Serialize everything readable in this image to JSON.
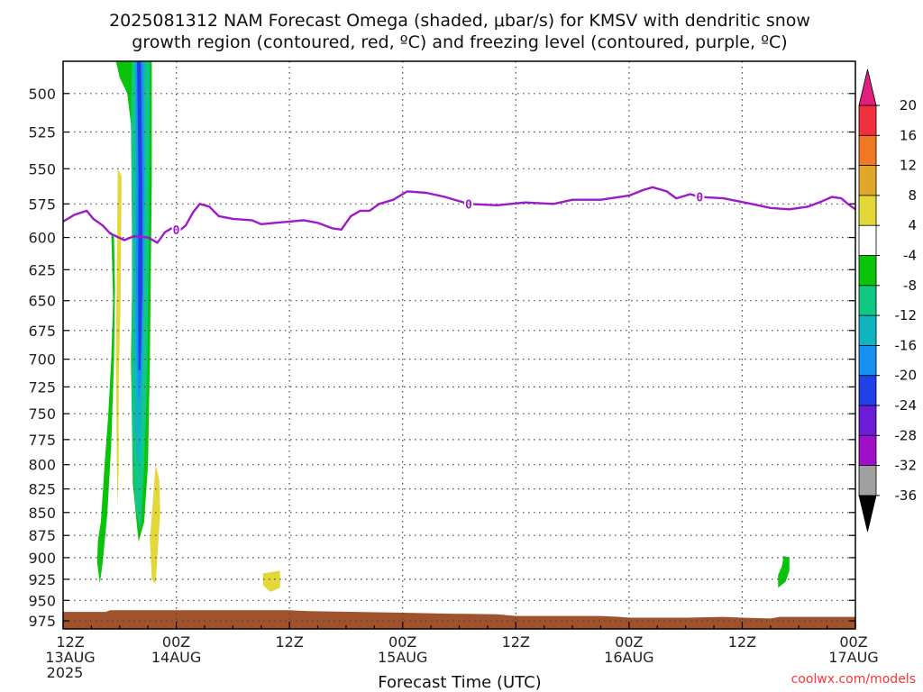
{
  "chart_data": {
    "type": "heatmap",
    "title": {
      "line1": "2025081312 NAM Forecast Omega (shaded, μbar/s) for KMSV with dendritic snow",
      "line2": "growth region (contoured, red, ºC) and freezing level (contoured, purple, ºC)"
    },
    "xlabel": "Forecast Time (UTC)",
    "x_ticks": [
      {
        "hour": 0,
        "line1": "12Z",
        "line2": "13AUG",
        "line3": "2025"
      },
      {
        "hour": 12,
        "line1": "00Z",
        "line2": "14AUG"
      },
      {
        "hour": 24,
        "line1": "12Z"
      },
      {
        "hour": 36,
        "line1": "00Z",
        "line2": "15AUG"
      },
      {
        "hour": 48,
        "line1": "12Z"
      },
      {
        "hour": 60,
        "line1": "00Z",
        "line2": "16AUG"
      },
      {
        "hour": 72,
        "line1": "12Z"
      },
      {
        "hour": 84,
        "line1": "00Z",
        "line2": "17AUG"
      }
    ],
    "xlim": [
      0,
      84
    ],
    "y_ticks": [
      500,
      525,
      550,
      575,
      600,
      625,
      650,
      675,
      700,
      725,
      750,
      775,
      800,
      825,
      850,
      875,
      900,
      925,
      950,
      975
    ],
    "ylim": [
      480,
      985
    ],
    "y_scale": "log-pressure (inverted)",
    "grid": true,
    "colorbar": {
      "labels": [
        "20",
        "16",
        "12",
        "8",
        "4",
        "-4",
        "-8",
        "-12",
        "-16",
        "-20",
        "-24",
        "-28",
        "-32",
        "-36"
      ],
      "colors": {
        "gt20": "#e01e7e",
        "16_20": "#f0303c",
        "12_16": "#f07822",
        "8_12": "#e0a82a",
        "4_8": "#e4d838",
        "m4_4": "#ffffff",
        "m8_m4": "#0ac40a",
        "m12_m8": "#10c884",
        "m16_m12": "#10b4c0",
        "m20_m16": "#1890f0",
        "m24_m20": "#2040e8",
        "m28_m24": "#6a1cd6",
        "m32_m28": "#a010c8",
        "m36_m32": "#a0a0a0",
        "lt_m36": "#000000"
      }
    },
    "freezing_level": {
      "color": "#9b1bc8",
      "contour_label": "0",
      "points": [
        [
          0,
          588
        ],
        [
          1.2,
          583
        ],
        [
          2.5,
          580
        ],
        [
          3.2,
          586
        ],
        [
          4.2,
          591
        ],
        [
          5.0,
          597
        ],
        [
          6.5,
          602
        ],
        [
          7.5,
          599
        ],
        [
          9.0,
          600
        ],
        [
          10.0,
          604
        ],
        [
          10.8,
          596
        ],
        [
          11.5,
          593
        ],
        [
          12.3,
          595
        ],
        [
          13.0,
          591
        ],
        [
          13.8,
          581
        ],
        [
          14.5,
          575
        ],
        [
          15.5,
          577
        ],
        [
          16.5,
          584
        ],
        [
          18.0,
          586
        ],
        [
          20.0,
          587
        ],
        [
          21.0,
          590
        ],
        [
          22.5,
          589
        ],
        [
          24.0,
          588
        ],
        [
          25.5,
          587
        ],
        [
          27.0,
          589
        ],
        [
          28.5,
          593
        ],
        [
          29.5,
          594
        ],
        [
          30.5,
          584
        ],
        [
          31.5,
          580
        ],
        [
          32.5,
          580
        ],
        [
          33.5,
          575
        ],
        [
          35.0,
          572
        ],
        [
          36.5,
          566
        ],
        [
          38.5,
          567
        ],
        [
          40.5,
          570
        ],
        [
          43.0,
          575
        ],
        [
          46.0,
          576
        ],
        [
          49.0,
          574
        ],
        [
          52.0,
          575
        ],
        [
          54.0,
          572
        ],
        [
          57.0,
          572
        ],
        [
          60.0,
          569
        ],
        [
          61.5,
          565
        ],
        [
          62.5,
          563
        ],
        [
          64.0,
          566
        ],
        [
          65.0,
          571
        ],
        [
          66.5,
          568
        ],
        [
          67.5,
          570
        ],
        [
          70.0,
          571
        ],
        [
          73.0,
          575
        ],
        [
          75.0,
          578
        ],
        [
          77.0,
          579
        ],
        [
          79.0,
          577
        ],
        [
          80.5,
          573
        ],
        [
          81.5,
          570
        ],
        [
          82.5,
          571
        ],
        [
          83.2,
          575
        ],
        [
          84.0,
          579
        ]
      ],
      "labels_at_hours": [
        12.0,
        43.0,
        67.5
      ]
    },
    "omega_regions": [
      {
        "range": "m8_m4",
        "points": [
          [
            5.6,
            480
          ],
          [
            9.4,
            480
          ],
          [
            9.4,
            560
          ],
          [
            9.2,
            700
          ],
          [
            9.0,
            800
          ],
          [
            8.6,
            860
          ],
          [
            8.0,
            882
          ],
          [
            7.4,
            820
          ],
          [
            7.2,
            700
          ],
          [
            7.4,
            600
          ],
          [
            7.2,
            520
          ],
          [
            6.8,
            500
          ],
          [
            6.0,
            490
          ]
        ]
      },
      {
        "range": "m12_m8",
        "points": [
          [
            7.3,
            480
          ],
          [
            9.2,
            480
          ],
          [
            9.1,
            600
          ],
          [
            8.9,
            720
          ],
          [
            8.6,
            800
          ],
          [
            8.2,
            870
          ],
          [
            7.6,
            840
          ],
          [
            7.3,
            760
          ],
          [
            7.3,
            600
          ],
          [
            7.2,
            520
          ]
        ]
      },
      {
        "range": "m16_m12",
        "points": [
          [
            7.6,
            480
          ],
          [
            8.7,
            480
          ],
          [
            8.7,
            600
          ],
          [
            8.5,
            700
          ],
          [
            8.2,
            790
          ],
          [
            7.9,
            800
          ],
          [
            7.6,
            760
          ],
          [
            7.5,
            680
          ],
          [
            7.6,
            560
          ]
        ]
      },
      {
        "range": "m20_m16",
        "points": [
          [
            7.7,
            480
          ],
          [
            8.5,
            480
          ],
          [
            8.6,
            560
          ],
          [
            8.5,
            650
          ],
          [
            8.3,
            720
          ],
          [
            8.0,
            740
          ],
          [
            7.8,
            700
          ],
          [
            7.7,
            620
          ],
          [
            7.8,
            540
          ]
        ]
      },
      {
        "range": "m24_m20",
        "points": [
          [
            7.85,
            480
          ],
          [
            8.25,
            480
          ],
          [
            8.4,
            560
          ],
          [
            8.4,
            640
          ],
          [
            8.2,
            710
          ],
          [
            8.0,
            710
          ],
          [
            7.95,
            640
          ],
          [
            8.0,
            560
          ]
        ]
      },
      {
        "range": "m8_m4",
        "points": [
          [
            5.1,
            595
          ],
          [
            5.3,
            650
          ],
          [
            5.1,
            700
          ],
          [
            4.8,
            750
          ],
          [
            4.4,
            800
          ],
          [
            4.0,
            860
          ],
          [
            3.7,
            880
          ],
          [
            3.6,
            905
          ],
          [
            3.9,
            930
          ],
          [
            4.2,
            905
          ],
          [
            4.7,
            850
          ],
          [
            5.1,
            780
          ],
          [
            5.4,
            700
          ],
          [
            5.5,
            640
          ],
          [
            5.4,
            600
          ]
        ]
      },
      {
        "range": "4_8",
        "points": [
          [
            5.8,
            550
          ],
          [
            6.2,
            555
          ],
          [
            6.1,
            650
          ],
          [
            5.9,
            720
          ],
          [
            5.9,
            800
          ],
          [
            5.8,
            845
          ],
          [
            5.7,
            800
          ],
          [
            5.6,
            700
          ],
          [
            5.7,
            620
          ]
        ]
      },
      {
        "range": "4_8",
        "points": [
          [
            9.8,
            800
          ],
          [
            10.2,
            815
          ],
          [
            10.3,
            850
          ],
          [
            10.0,
            900
          ],
          [
            9.8,
            930
          ],
          [
            9.4,
            925
          ],
          [
            9.2,
            880
          ],
          [
            9.5,
            840
          ]
        ]
      },
      {
        "range": "4_8",
        "points": [
          [
            21.2,
            918
          ],
          [
            23.0,
            915
          ],
          [
            23.0,
            935
          ],
          [
            22.0,
            940
          ],
          [
            21.2,
            932
          ]
        ]
      },
      {
        "range": "m8_m4",
        "points": [
          [
            76.4,
            898
          ],
          [
            77.0,
            900
          ],
          [
            77.0,
            915
          ],
          [
            76.6,
            928
          ],
          [
            75.8,
            935
          ],
          [
            75.8,
            920
          ],
          [
            76.2,
            910
          ]
        ]
      }
    ],
    "surface_terrain": {
      "color": "#a0522d",
      "top_pressure": [
        [
          0,
          964
        ],
        [
          4.5,
          964
        ],
        [
          5.0,
          962
        ],
        [
          24.0,
          962
        ],
        [
          26.0,
          963
        ],
        [
          36.0,
          965
        ],
        [
          40.0,
          966
        ],
        [
          46.0,
          967
        ],
        [
          48.0,
          969
        ],
        [
          57.0,
          969
        ],
        [
          59.0,
          970
        ],
        [
          60.0,
          971
        ],
        [
          66.0,
          971
        ],
        [
          70.0,
          970
        ],
        [
          72.0,
          971
        ],
        [
          75.0,
          972
        ],
        [
          76.0,
          970
        ],
        [
          84.0,
          970
        ]
      ]
    }
  },
  "credit": {
    "text": "coolwx.com/models",
    "color": "#ff3333"
  }
}
